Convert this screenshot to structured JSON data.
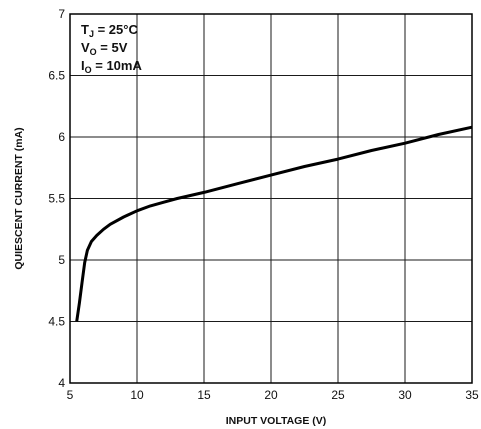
{
  "chart_data": {
    "type": "line",
    "title": "",
    "xlabel": "INPUT VOLTAGE (V)",
    "ylabel": "QUIESCENT CURRENT (mA)",
    "xlim": [
      5,
      35
    ],
    "ylim": [
      4,
      7
    ],
    "xticks": [
      5,
      10,
      15,
      20,
      25,
      30,
      35
    ],
    "yticks": [
      4,
      4.5,
      5,
      5.5,
      6,
      6.5,
      7
    ],
    "grid": true,
    "legend": "none",
    "annotations": [
      {
        "main": "T",
        "sub": "J",
        "rest": " = 25°C"
      },
      {
        "main": "V",
        "sub": "O",
        "rest": " = 5V"
      },
      {
        "main": "I",
        "sub": "O",
        "rest": " = 10mA"
      }
    ],
    "series": [
      {
        "x": [
          5.5,
          5.7,
          5.9,
          6.1,
          6.3,
          6.6,
          7.0,
          7.5,
          8.0,
          9.0,
          10.0,
          11.0,
          12.0,
          13.0,
          15.0,
          17.5,
          20.0,
          22.5,
          25.0,
          27.5,
          30.0,
          32.5,
          35.0
        ],
        "y": [
          4.5,
          4.65,
          4.82,
          4.98,
          5.08,
          5.15,
          5.2,
          5.25,
          5.29,
          5.35,
          5.4,
          5.44,
          5.47,
          5.5,
          5.55,
          5.62,
          5.69,
          5.76,
          5.82,
          5.89,
          5.95,
          6.02,
          6.08
        ]
      }
    ],
    "colors": {
      "line": "#000000",
      "grid": "#1a1a1a",
      "frame": "#000000"
    }
  }
}
